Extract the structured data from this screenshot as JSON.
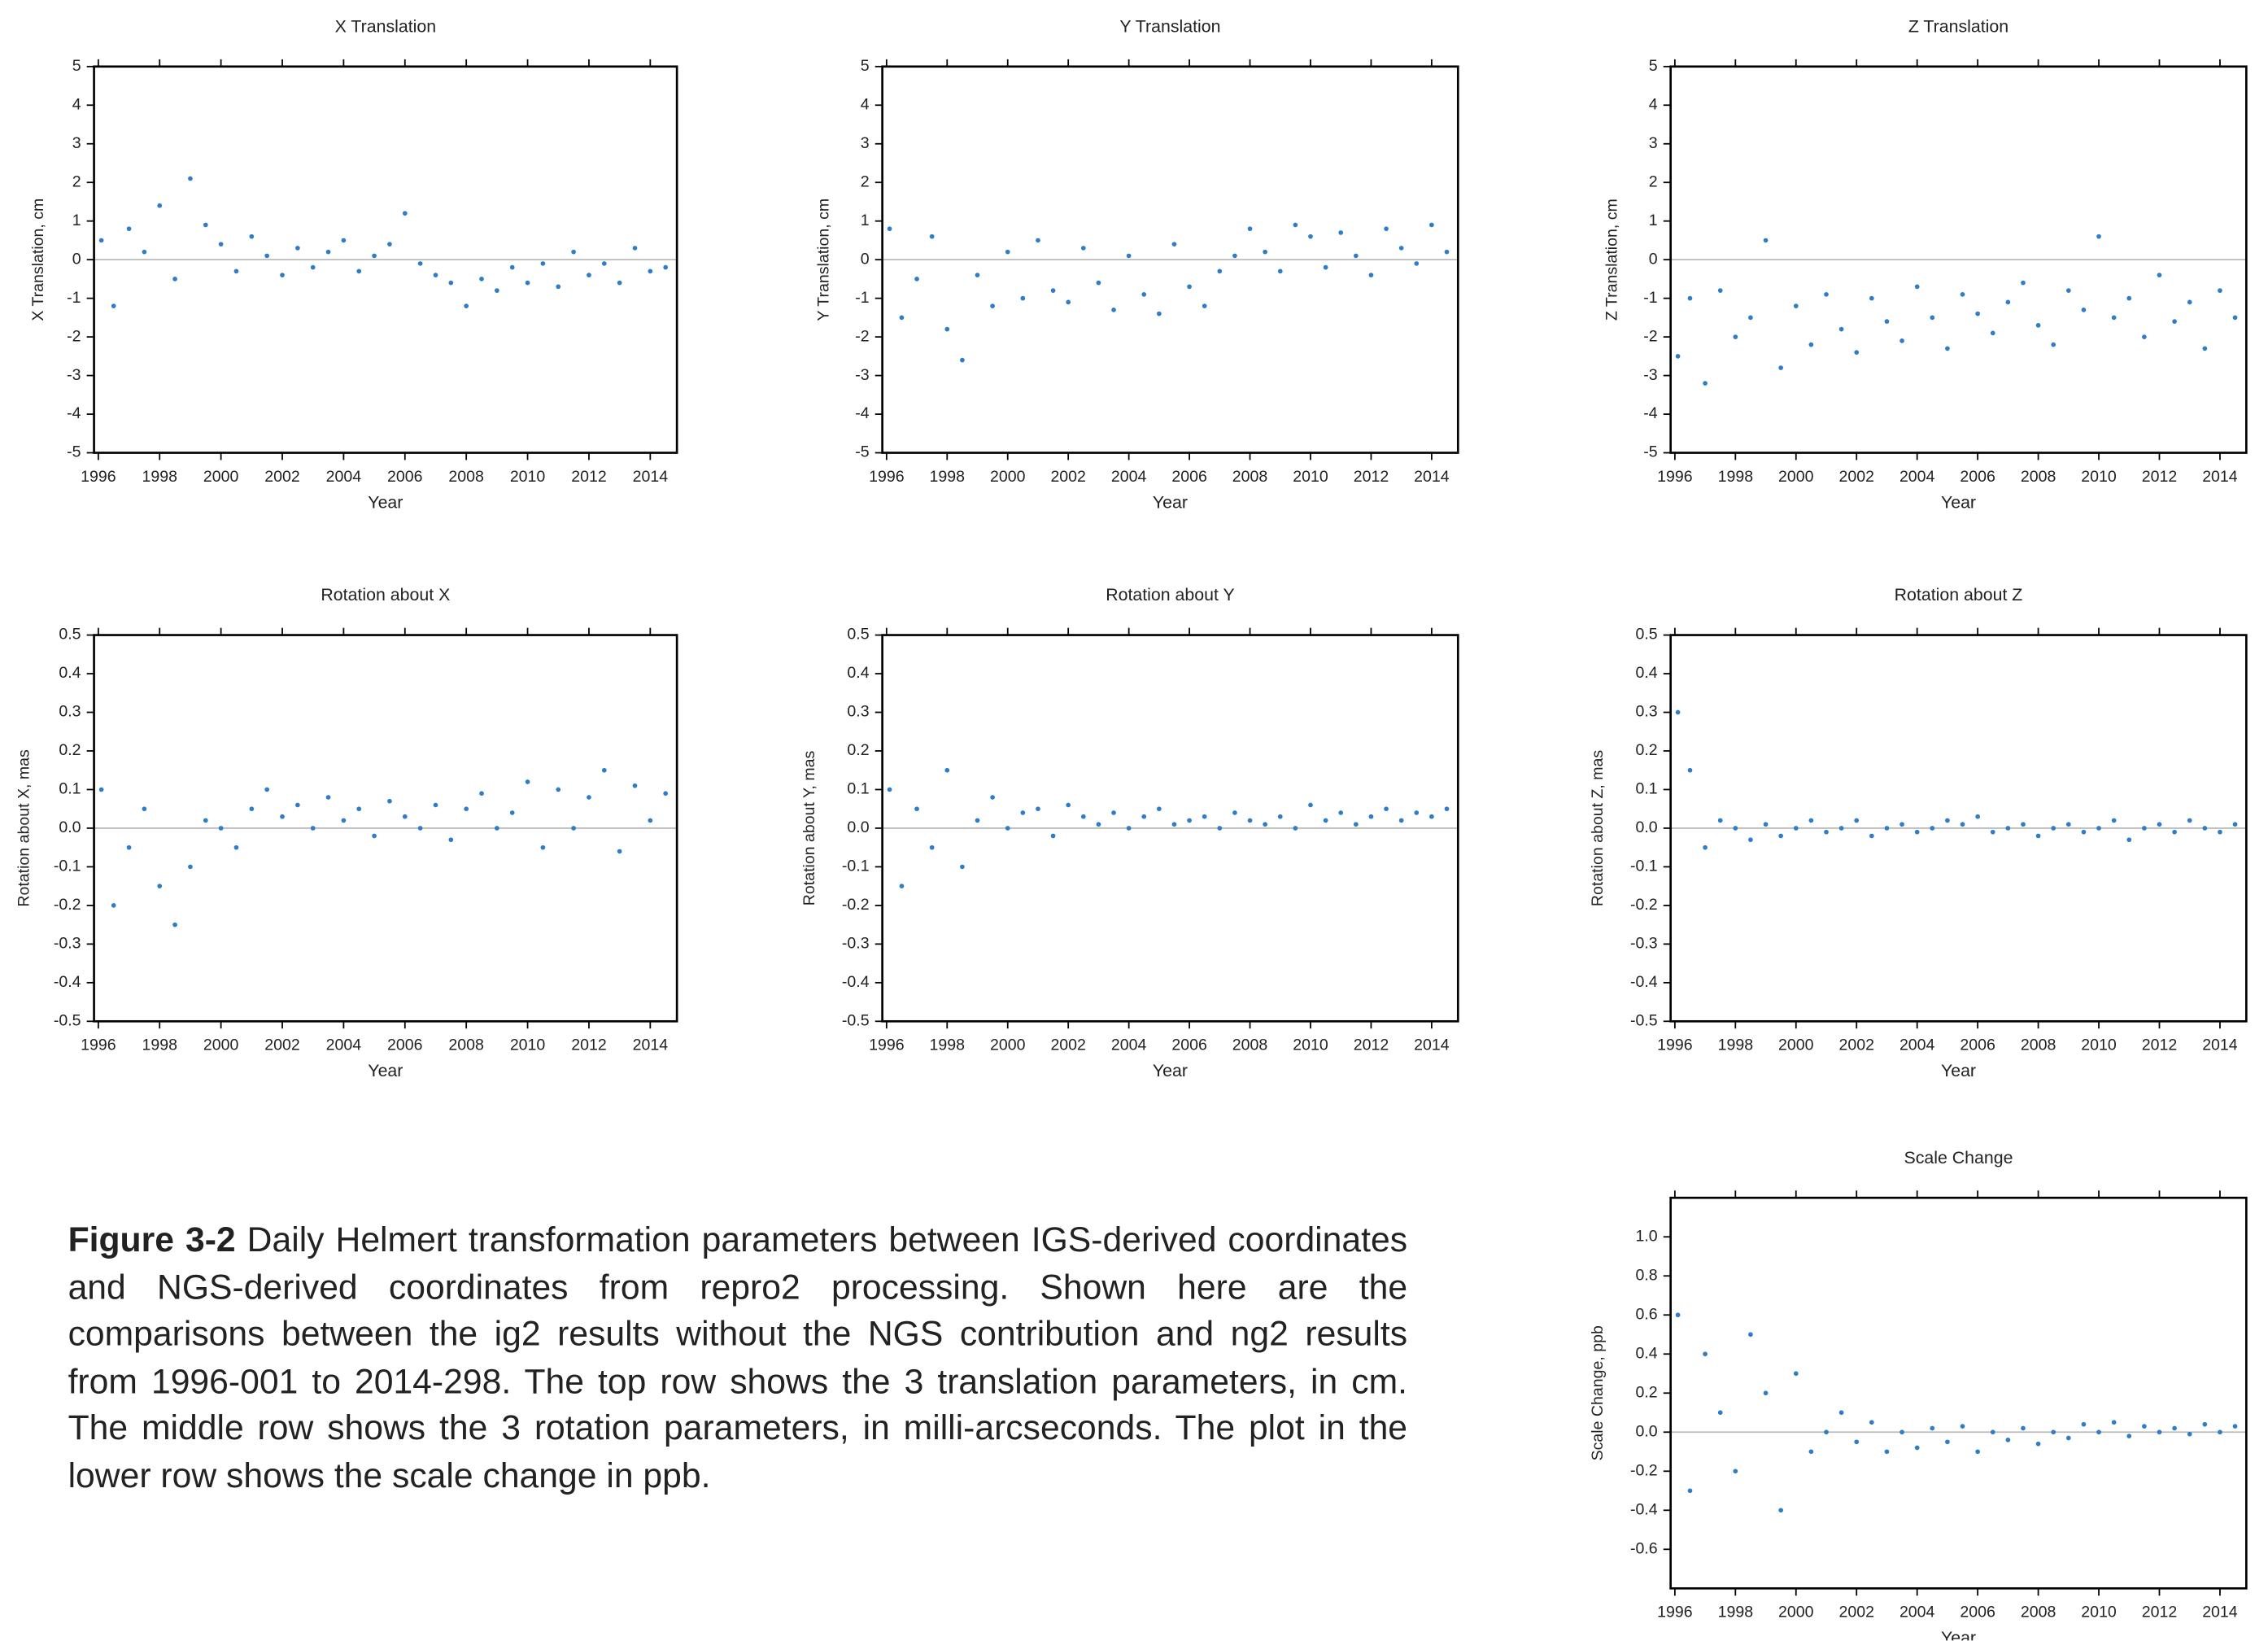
{
  "chart_data": [
    {
      "type": "scatter",
      "title": "X Translation",
      "x_label": "Year",
      "y_label": "X Translation, cm",
      "color": "#2f7dc8",
      "xlim": [
        1995.86,
        2014.87
      ],
      "xticks": [
        1996,
        1998,
        2000,
        2002,
        2004,
        2006,
        2008,
        2010,
        2012,
        2014
      ],
      "ylim": [
        -5,
        5
      ],
      "yticks": [
        -5,
        -4,
        -3,
        -2,
        -1,
        0,
        1,
        2,
        3,
        4,
        5
      ],
      "x": [
        1996.1,
        1996.5,
        1997.0,
        1997.5,
        1998.0,
        1998.5,
        1999.0,
        1999.5,
        2000.0,
        2000.5,
        2001.0,
        2001.5,
        2002.0,
        2002.5,
        2003.0,
        2003.5,
        2004.0,
        2004.5,
        2005.0,
        2005.5,
        2006.0,
        2006.5,
        2007.0,
        2007.5,
        2008.0,
        2008.5,
        2009.0,
        2009.5,
        2010.0,
        2010.5,
        2011.0,
        2011.5,
        2012.0,
        2012.5,
        2013.0,
        2013.5,
        2014.0,
        2014.5
      ],
      "values": [
        0.5,
        -1.2,
        0.8,
        0.2,
        1.4,
        -0.5,
        2.1,
        0.9,
        0.4,
        -0.3,
        0.6,
        0.1,
        -0.4,
        0.3,
        -0.2,
        0.2,
        0.5,
        -0.3,
        0.1,
        0.4,
        1.2,
        -0.1,
        -0.4,
        -0.6,
        -1.2,
        -0.5,
        -0.8,
        -0.2,
        -0.6,
        -0.1,
        -0.7,
        0.2,
        -0.4,
        -0.1,
        -0.6,
        0.3,
        -0.3,
        -0.2
      ]
    },
    {
      "type": "scatter",
      "title": "Y Translation",
      "x_label": "Year",
      "y_label": "Y Translation, cm",
      "color": "#2f7dc8",
      "xlim": [
        1995.86,
        2014.87
      ],
      "xticks": [
        1996,
        1998,
        2000,
        2002,
        2004,
        2006,
        2008,
        2010,
        2012,
        2014
      ],
      "ylim": [
        -5,
        5
      ],
      "yticks": [
        -5,
        -4,
        -3,
        -2,
        -1,
        0,
        1,
        2,
        3,
        4,
        5
      ],
      "x": [
        1996.1,
        1996.5,
        1997.0,
        1997.5,
        1998.0,
        1998.5,
        1999.0,
        1999.5,
        2000.0,
        2000.5,
        2001.0,
        2001.5,
        2002.0,
        2002.5,
        2003.0,
        2003.5,
        2004.0,
        2004.5,
        2005.0,
        2005.5,
        2006.0,
        2006.5,
        2007.0,
        2007.5,
        2008.0,
        2008.5,
        2009.0,
        2009.5,
        2010.0,
        2010.5,
        2011.0,
        2011.5,
        2012.0,
        2012.5,
        2013.0,
        2013.5,
        2014.0,
        2014.5
      ],
      "values": [
        0.8,
        -1.5,
        -0.5,
        0.6,
        -1.8,
        -2.6,
        -0.4,
        -1.2,
        0.2,
        -1.0,
        0.5,
        -0.8,
        -1.1,
        0.3,
        -0.6,
        -1.3,
        0.1,
        -0.9,
        -1.4,
        0.4,
        -0.7,
        -1.2,
        -0.3,
        0.1,
        0.8,
        0.2,
        -0.3,
        0.9,
        0.6,
        -0.2,
        0.7,
        0.1,
        -0.4,
        0.8,
        0.3,
        -0.1,
        0.9,
        0.2
      ]
    },
    {
      "type": "scatter",
      "title": "Z Translation",
      "x_label": "Year",
      "y_label": "Z Translation, cm",
      "color": "#2f7dc8",
      "xlim": [
        1995.86,
        2014.87
      ],
      "xticks": [
        1996,
        1998,
        2000,
        2002,
        2004,
        2006,
        2008,
        2010,
        2012,
        2014
      ],
      "ylim": [
        -5,
        5
      ],
      "yticks": [
        -5,
        -4,
        -3,
        -2,
        -1,
        0,
        1,
        2,
        3,
        4,
        5
      ],
      "x": [
        1996.1,
        1996.5,
        1997.0,
        1997.5,
        1998.0,
        1998.5,
        1999.0,
        1999.5,
        2000.0,
        2000.5,
        2001.0,
        2001.5,
        2002.0,
        2002.5,
        2003.0,
        2003.5,
        2004.0,
        2004.5,
        2005.0,
        2005.5,
        2006.0,
        2006.5,
        2007.0,
        2007.5,
        2008.0,
        2008.5,
        2009.0,
        2009.5,
        2010.0,
        2010.5,
        2011.0,
        2011.5,
        2012.0,
        2012.5,
        2013.0,
        2013.5,
        2014.0,
        2014.5
      ],
      "values": [
        -2.5,
        -1.0,
        -3.2,
        -0.8,
        -2.0,
        -1.5,
        0.5,
        -2.8,
        -1.2,
        -2.2,
        -0.9,
        -1.8,
        -2.4,
        -1.0,
        -1.6,
        -2.1,
        -0.7,
        -1.5,
        -2.3,
        -0.9,
        -1.4,
        -1.9,
        -1.1,
        -0.6,
        -1.7,
        -2.2,
        -0.8,
        -1.3,
        0.6,
        -1.5,
        -1.0,
        -2.0,
        -0.4,
        -1.6,
        -1.1,
        -2.3,
        -0.8,
        -1.5
      ]
    },
    {
      "type": "scatter",
      "title": "Rotation about X",
      "x_label": "Year",
      "y_label": "Rotation about X, mas",
      "color": "#2f7dc8",
      "xlim": [
        1995.86,
        2014.87
      ],
      "xticks": [
        1996,
        1998,
        2000,
        2002,
        2004,
        2006,
        2008,
        2010,
        2012,
        2014
      ],
      "ylim": [
        -0.5,
        0.5
      ],
      "yticks": [
        -0.5,
        -0.4,
        -0.3,
        -0.2,
        -0.1,
        {
          "value": 0,
          "label": "0.0"
        },
        0.1,
        0.2,
        0.3,
        0.4,
        0.5
      ],
      "x": [
        1996.1,
        1996.5,
        1997.0,
        1997.5,
        1998.0,
        1998.5,
        1999.0,
        1999.5,
        2000.0,
        2000.5,
        2001.0,
        2001.5,
        2002.0,
        2002.5,
        2003.0,
        2003.5,
        2004.0,
        2004.5,
        2005.0,
        2005.5,
        2006.0,
        2006.5,
        2007.0,
        2007.5,
        2008.0,
        2008.5,
        2009.0,
        2009.5,
        2010.0,
        2010.5,
        2011.0,
        2011.5,
        2012.0,
        2012.5,
        2013.0,
        2013.5,
        2014.0,
        2014.5
      ],
      "values": [
        0.1,
        -0.2,
        -0.05,
        0.05,
        -0.15,
        -0.25,
        -0.1,
        0.02,
        0.0,
        -0.05,
        0.05,
        0.1,
        0.03,
        0.06,
        0.0,
        0.08,
        0.02,
        0.05,
        -0.02,
        0.07,
        0.03,
        0.0,
        0.06,
        -0.03,
        0.05,
        0.09,
        0.0,
        0.04,
        0.12,
        -0.05,
        0.1,
        0.0,
        0.08,
        0.15,
        -0.06,
        0.11,
        0.02,
        0.09
      ]
    },
    {
      "type": "scatter",
      "title": "Rotation about Y",
      "x_label": "Year",
      "y_label": "Rotation about Y, mas",
      "color": "#2f7dc8",
      "xlim": [
        1995.86,
        2014.87
      ],
      "xticks": [
        1996,
        1998,
        2000,
        2002,
        2004,
        2006,
        2008,
        2010,
        2012,
        2014
      ],
      "ylim": [
        -0.5,
        0.5
      ],
      "yticks": [
        -0.5,
        -0.4,
        -0.3,
        -0.2,
        -0.1,
        {
          "value": 0,
          "label": "0.0"
        },
        0.1,
        0.2,
        0.3,
        0.4,
        0.5
      ],
      "x": [
        1996.1,
        1996.5,
        1997.0,
        1997.5,
        1998.0,
        1998.5,
        1999.0,
        1999.5,
        2000.0,
        2000.5,
        2001.0,
        2001.5,
        2002.0,
        2002.5,
        2003.0,
        2003.5,
        2004.0,
        2004.5,
        2005.0,
        2005.5,
        2006.0,
        2006.5,
        2007.0,
        2007.5,
        2008.0,
        2008.5,
        2009.0,
        2009.5,
        2010.0,
        2010.5,
        2011.0,
        2011.5,
        2012.0,
        2012.5,
        2013.0,
        2013.5,
        2014.0,
        2014.5
      ],
      "values": [
        0.1,
        -0.15,
        0.05,
        -0.05,
        0.15,
        -0.1,
        0.02,
        0.08,
        0.0,
        0.04,
        0.05,
        -0.02,
        0.06,
        0.03,
        0.01,
        0.04,
        0.0,
        0.03,
        0.05,
        0.01,
        0.02,
        0.03,
        0.0,
        0.04,
        0.02,
        0.01,
        0.03,
        0.0,
        0.06,
        0.02,
        0.04,
        0.01,
        0.03,
        0.05,
        0.02,
        0.04,
        0.03,
        0.05
      ]
    },
    {
      "type": "scatter",
      "title": "Rotation about Z",
      "x_label": "Year",
      "y_label": "Rotation about Z, mas",
      "color": "#2f7dc8",
      "xlim": [
        1995.86,
        2014.87
      ],
      "xticks": [
        1996,
        1998,
        2000,
        2002,
        2004,
        2006,
        2008,
        2010,
        2012,
        2014
      ],
      "ylim": [
        -0.5,
        0.5
      ],
      "yticks": [
        -0.5,
        -0.4,
        -0.3,
        -0.2,
        -0.1,
        {
          "value": 0,
          "label": "0.0"
        },
        0.1,
        0.2,
        0.3,
        0.4,
        0.5
      ],
      "x": [
        1996.1,
        1996.5,
        1997.0,
        1997.5,
        1998.0,
        1998.5,
        1999.0,
        1999.5,
        2000.0,
        2000.5,
        2001.0,
        2001.5,
        2002.0,
        2002.5,
        2003.0,
        2003.5,
        2004.0,
        2004.5,
        2005.0,
        2005.5,
        2006.0,
        2006.5,
        2007.0,
        2007.5,
        2008.0,
        2008.5,
        2009.0,
        2009.5,
        2010.0,
        2010.5,
        2011.0,
        2011.5,
        2012.0,
        2012.5,
        2013.0,
        2013.5,
        2014.0,
        2014.5
      ],
      "values": [
        0.3,
        0.15,
        -0.05,
        0.02,
        0.0,
        -0.03,
        0.01,
        -0.02,
        0.0,
        0.02,
        -0.01,
        0.0,
        0.02,
        -0.02,
        0.0,
        0.01,
        -0.01,
        0.0,
        0.02,
        0.01,
        0.03,
        -0.01,
        0.0,
        0.01,
        -0.02,
        0.0,
        0.01,
        -0.01,
        0.0,
        0.02,
        -0.03,
        0.0,
        0.01,
        -0.01,
        0.02,
        0.0,
        -0.01,
        0.01
      ]
    },
    {
      "type": "scatter",
      "title": "Scale Change",
      "x_label": "Year",
      "y_label": "Scale Change, ppb",
      "color": "#2f7dc8",
      "xlim": [
        1995.86,
        2014.87
      ],
      "xticks": [
        1996,
        1998,
        2000,
        2002,
        2004,
        2006,
        2008,
        2010,
        2012,
        2014
      ],
      "ylim": [
        -0.8,
        1.2
      ],
      "yticks": [
        -0.6,
        -0.4,
        -0.2,
        {
          "value": 0,
          "label": "0.0"
        },
        0.2,
        0.4,
        0.6,
        0.8,
        {
          "value": 1,
          "label": "1.0"
        }
      ],
      "x": [
        1996.1,
        1996.5,
        1997.0,
        1997.5,
        1998.0,
        1998.5,
        1999.0,
        1999.5,
        2000.0,
        2000.5,
        2001.0,
        2001.5,
        2002.0,
        2002.5,
        2003.0,
        2003.5,
        2004.0,
        2004.5,
        2005.0,
        2005.5,
        2006.0,
        2006.5,
        2007.0,
        2007.5,
        2008.0,
        2008.5,
        2009.0,
        2009.5,
        2010.0,
        2010.5,
        2011.0,
        2011.5,
        2012.0,
        2012.5,
        2013.0,
        2013.5,
        2014.0,
        2014.5
      ],
      "values": [
        0.6,
        -0.3,
        0.4,
        0.1,
        -0.2,
        0.5,
        0.2,
        -0.4,
        0.3,
        -0.1,
        0.0,
        0.1,
        -0.05,
        0.05,
        -0.1,
        0.0,
        -0.08,
        0.02,
        -0.05,
        0.03,
        -0.1,
        0.0,
        -0.04,
        0.02,
        -0.06,
        0.0,
        -0.03,
        0.04,
        0.0,
        0.05,
        -0.02,
        0.03,
        0.0,
        0.02,
        -0.01,
        0.04,
        0.0,
        0.03
      ]
    }
  ],
  "caption": {
    "label": "Figure 3-2",
    "text": "Daily Helmert transformation parameters between IGS-derived coordinates and NGS-derived coordinates from repro2 processing. Shown here are the comparisons between the ig2 results without the NGS contribution and ng2 results from 1996-001 to 2014-298. The top row shows the 3 translation parameters, in cm. The middle row shows the 3 rotation parameters, in milli-arcseconds. The plot in the lower row shows the scale change in ppb."
  }
}
